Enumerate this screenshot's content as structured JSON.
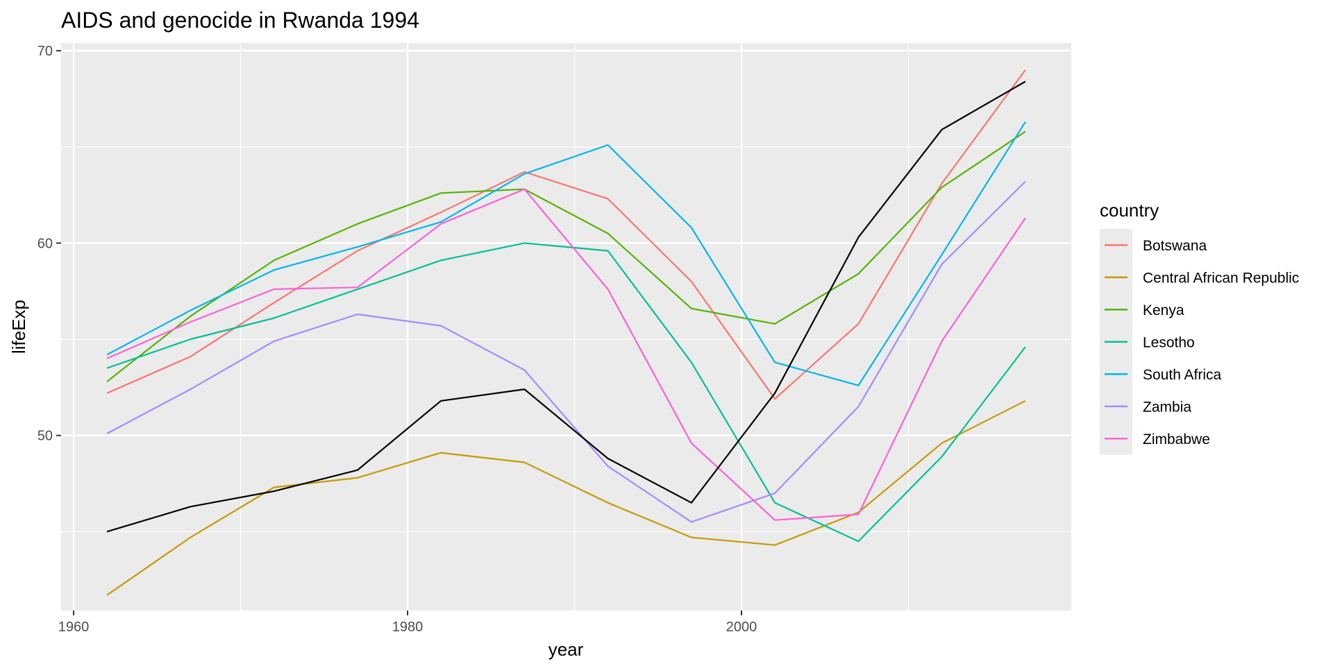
{
  "chart_data": {
    "type": "line",
    "title": "AIDS and genocide in Rwanda 1994",
    "xlabel": "year",
    "ylabel": "lifeExp",
    "xlim": [
      1959.25,
      2019.75
    ],
    "ylim": [
      40.9,
      70.4
    ],
    "xticks": [
      1960,
      1980,
      2000
    ],
    "yticks": [
      50,
      60,
      70
    ],
    "grid": true,
    "legend": {
      "title": "country",
      "position": "right"
    },
    "x": [
      1962,
      1967,
      1972,
      1977,
      1982,
      1987,
      1992,
      1997,
      2002,
      2007,
      2012,
      2017
    ],
    "series": [
      {
        "name": "Botswana",
        "color": "#F8766D",
        "values": [
          52.2,
          54.1,
          56.9,
          59.6,
          61.6,
          63.7,
          62.3,
          58.0,
          51.9,
          55.8,
          63.1,
          69.0
        ]
      },
      {
        "name": "Central African Republic",
        "color": "#C49A00",
        "values": [
          41.7,
          44.7,
          47.3,
          47.8,
          49.1,
          48.6,
          46.5,
          44.7,
          44.3,
          46.0,
          49.6,
          51.8
        ]
      },
      {
        "name": "Kenya",
        "color": "#53B400",
        "values": [
          52.8,
          56.2,
          59.1,
          61.0,
          62.6,
          62.8,
          60.5,
          56.6,
          55.8,
          58.4,
          62.9,
          65.8
        ]
      },
      {
        "name": "Lesotho",
        "color": "#00C094",
        "values": [
          53.5,
          55.0,
          56.1,
          57.6,
          59.1,
          60.0,
          59.6,
          53.8,
          46.5,
          44.5,
          48.9,
          54.6
        ]
      },
      {
        "name": "South Africa",
        "color": "#00B6EB",
        "values": [
          54.2,
          56.5,
          58.6,
          59.8,
          61.1,
          63.6,
          65.1,
          60.8,
          53.8,
          52.6,
          59.4,
          66.3
        ]
      },
      {
        "name": "Zambia",
        "color": "#A58AFF",
        "values": [
          50.1,
          52.4,
          54.9,
          56.3,
          55.7,
          53.4,
          48.4,
          45.5,
          47.0,
          51.5,
          58.9,
          63.2
        ]
      },
      {
        "name": "Zimbabwe",
        "color": "#FB61D7",
        "values": [
          54.0,
          55.9,
          57.6,
          57.7,
          61.0,
          62.8,
          57.6,
          49.6,
          45.6,
          45.9,
          54.9,
          61.3
        ]
      },
      {
        "name": "",
        "color": "#000000",
        "values": [
          45.0,
          46.3,
          47.1,
          48.2,
          51.8,
          52.4,
          48.8,
          46.5,
          52.2,
          60.3,
          65.9,
          68.4
        ]
      }
    ]
  }
}
